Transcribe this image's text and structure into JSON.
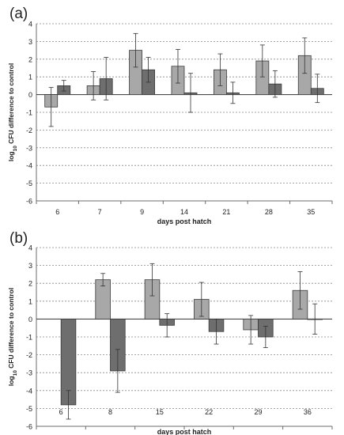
{
  "chart_data": [
    {
      "type": "bar",
      "panel_label": "(a)",
      "categories": [
        "6",
        "7",
        "9",
        "14",
        "21",
        "28",
        "35"
      ],
      "series": [
        {
          "color": "#a8a8a8",
          "values": [
            -0.7,
            0.5,
            2.5,
            1.6,
            1.4,
            1.9,
            2.2
          ],
          "error": [
            1.1,
            0.8,
            0.95,
            0.95,
            0.9,
            0.9,
            1.0
          ]
        },
        {
          "color": "#6e6e6e",
          "values": [
            0.5,
            0.9,
            1.4,
            0.1,
            0.1,
            0.6,
            0.35
          ],
          "error": [
            0.3,
            1.2,
            0.7,
            1.1,
            0.6,
            0.75,
            0.8
          ]
        }
      ],
      "ylim": [
        -6,
        4
      ],
      "yticks": [
        "4",
        "3",
        "2",
        "1",
        "0",
        "-1",
        "-2",
        "-3",
        "-4",
        "-5",
        "-6"
      ],
      "xlabel": "days post hatch",
      "ylabel_prefix": "log",
      "ylabel_subscript": "10",
      "ylabel_suffix": " CFU difference to control",
      "grid": "horizontal dashed",
      "legend": "none"
    },
    {
      "type": "bar",
      "panel_label": "(b)",
      "categories": [
        "6",
        "8",
        "15",
        "22",
        "29",
        "36"
      ],
      "series": [
        {
          "color": "#a8a8a8",
          "values": [
            0,
            2.2,
            2.2,
            1.1,
            -0.6,
            1.6
          ],
          "error": [
            0,
            0.35,
            0.9,
            0.95,
            0.8,
            1.05
          ]
        },
        {
          "color": "#6e6e6e",
          "values": [
            -4.8,
            -2.9,
            -0.35,
            -0.7,
            -1.0,
            0.0
          ],
          "error": [
            0.8,
            1.2,
            0.65,
            0.7,
            0.6,
            0.85
          ]
        }
      ],
      "ylim": [
        -6,
        4
      ],
      "yticks": [
        "4",
        "3",
        "2",
        "1",
        "0",
        "-1",
        "-2",
        "-3",
        "-4",
        "-5",
        "-6"
      ],
      "xlabel": "days post hatch",
      "ylabel_prefix": "log",
      "ylabel_subscript": "10",
      "ylabel_suffix": " CFU difference to control",
      "grid": "horizontal dashed",
      "legend": "none"
    }
  ]
}
